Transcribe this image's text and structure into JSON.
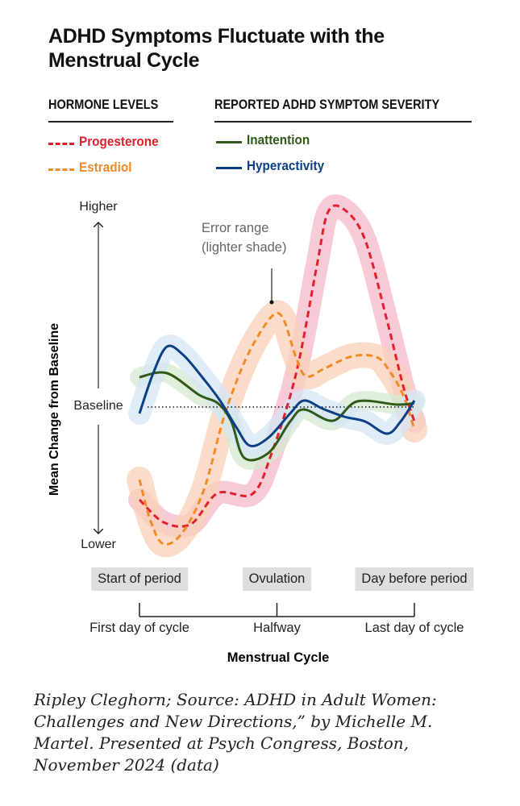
{
  "title": "ADHD Symptoms Fluctuate with the Menstrual Cycle",
  "legend": {
    "hormone_header": "HORMONE LEVELS",
    "symptom_header": "REPORTED ADHD SYMPTOM SEVERITY",
    "progesterone": "Progesterone",
    "estradiol": "Estradiol",
    "inattention": "Inattention",
    "hyperactivity": "Hyperactivity"
  },
  "annotation": {
    "line1": "Error range",
    "line2": "(lighter shade)"
  },
  "caption": "Ripley Cleghorn; Source: ADHD in Adult Women: Challenges and New Directions,” by Michelle M. Martel. Presented at Psych Congress, Boston, November 2024 (data)",
  "chart_data": {
    "type": "line",
    "title": "ADHD Symptoms Fluctuate with the Menstrual Cycle",
    "xlabel": "Menstrual Cycle",
    "ylabel": "Mean Change from Baseline",
    "y_tick_labels": {
      "higher": "Higher",
      "baseline": "Baseline",
      "lower": "Lower"
    },
    "x_ticks": [
      {
        "x": 0,
        "label": "First day of cycle",
        "phase": "Start of period"
      },
      {
        "x": 50,
        "label": "Halfway",
        "phase": "Ovulation"
      },
      {
        "x": 100,
        "label": "Last day of cycle",
        "phase": "Day before period"
      }
    ],
    "xlim": [
      0,
      100
    ],
    "ylim": [
      -0.9,
      1.3
    ],
    "baseline": 0,
    "grid": false,
    "legend_placement": "top",
    "series": [
      {
        "name": "Progesterone",
        "group": "Hormone levels",
        "style": "dashed",
        "color": "#e0202e",
        "band": "#f5b8c8",
        "error": 0.07,
        "x": [
          0,
          8.8,
          18.8,
          28.4,
          41,
          48,
          57,
          64.5,
          68.6,
          74.5,
          82,
          90,
          96,
          100
        ],
        "y": [
          -0.575,
          -0.715,
          -0.725,
          -0.535,
          -0.54,
          -0.29,
          0.21,
          0.875,
          1.21,
          1.225,
          1.04,
          0.54,
          0.125,
          -0.09
        ]
      },
      {
        "name": "Estradiol",
        "group": "Hormone levels",
        "style": "dashed",
        "color": "#f08a24",
        "band": "#fad0b8",
        "error": 0.08,
        "x": [
          0,
          4.1,
          8.8,
          15.8,
          23.5,
          30.5,
          37.2,
          43.1,
          49,
          52.5,
          56.9,
          60.7,
          67.4,
          77.4,
          86.2,
          90.9,
          95.9,
          100
        ],
        "y": [
          -0.45,
          -0.71,
          -0.85,
          -0.775,
          -0.51,
          -0.075,
          0.24,
          0.44,
          0.575,
          0.54,
          0.31,
          0.19,
          0.24,
          0.315,
          0.31,
          0.225,
          0.075,
          -0.14
        ]
      },
      {
        "name": "Inattention",
        "group": "Reported ADHD symptom severity",
        "style": "solid",
        "color": "#2f5a18",
        "band": "#d6ead0",
        "error": 0.06,
        "x": [
          0,
          10,
          21.7,
          28.4,
          33.4,
          38.1,
          46.9,
          54.8,
          59.8,
          70.4,
          79.2,
          93.8,
          100
        ],
        "y": [
          0.185,
          0.21,
          0.075,
          0.025,
          -0.09,
          -0.315,
          -0.285,
          -0.09,
          -0.015,
          -0.085,
          0.035,
          0.015,
          0.025
        ]
      },
      {
        "name": "Hyperactivity",
        "group": "Reported ADHD symptom severity",
        "style": "solid",
        "color": "#0b3f86",
        "band": "#d6e6f6",
        "error": 0.07,
        "x": [
          0,
          5,
          10,
          15.8,
          22.6,
          29.3,
          35.2,
          40.2,
          46.9,
          54.8,
          59.8,
          66.6,
          74.5,
          82.1,
          90,
          95,
          100
        ],
        "y": [
          -0.04,
          0.21,
          0.375,
          0.325,
          0.19,
          0.04,
          -0.125,
          -0.24,
          -0.19,
          -0.04,
          0.04,
          -0.01,
          -0.06,
          -0.09,
          -0.165,
          -0.09,
          0.04
        ]
      }
    ]
  }
}
